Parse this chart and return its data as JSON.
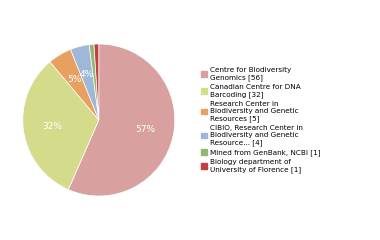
{
  "labels": [
    "Centre for Biodiversity\nGenomics [56]",
    "Canadian Centre for DNA\nBarcoding [32]",
    "Research Center in\nBiodiversity and Genetic\nResources [5]",
    "CIBIO, Research Center in\nBiodiversity and Genetic\nResource... [4]",
    "Mined from GenBank, NCBI [1]",
    "Biology department of\nUniversity of Florence [1]"
  ],
  "values": [
    56,
    32,
    5,
    4,
    1,
    1
  ],
  "colors": [
    "#d9a0a0",
    "#d4dc8c",
    "#e8a060",
    "#a0b8d8",
    "#90b870",
    "#c04040"
  ],
  "startangle": 90,
  "background_color": "#ffffff"
}
